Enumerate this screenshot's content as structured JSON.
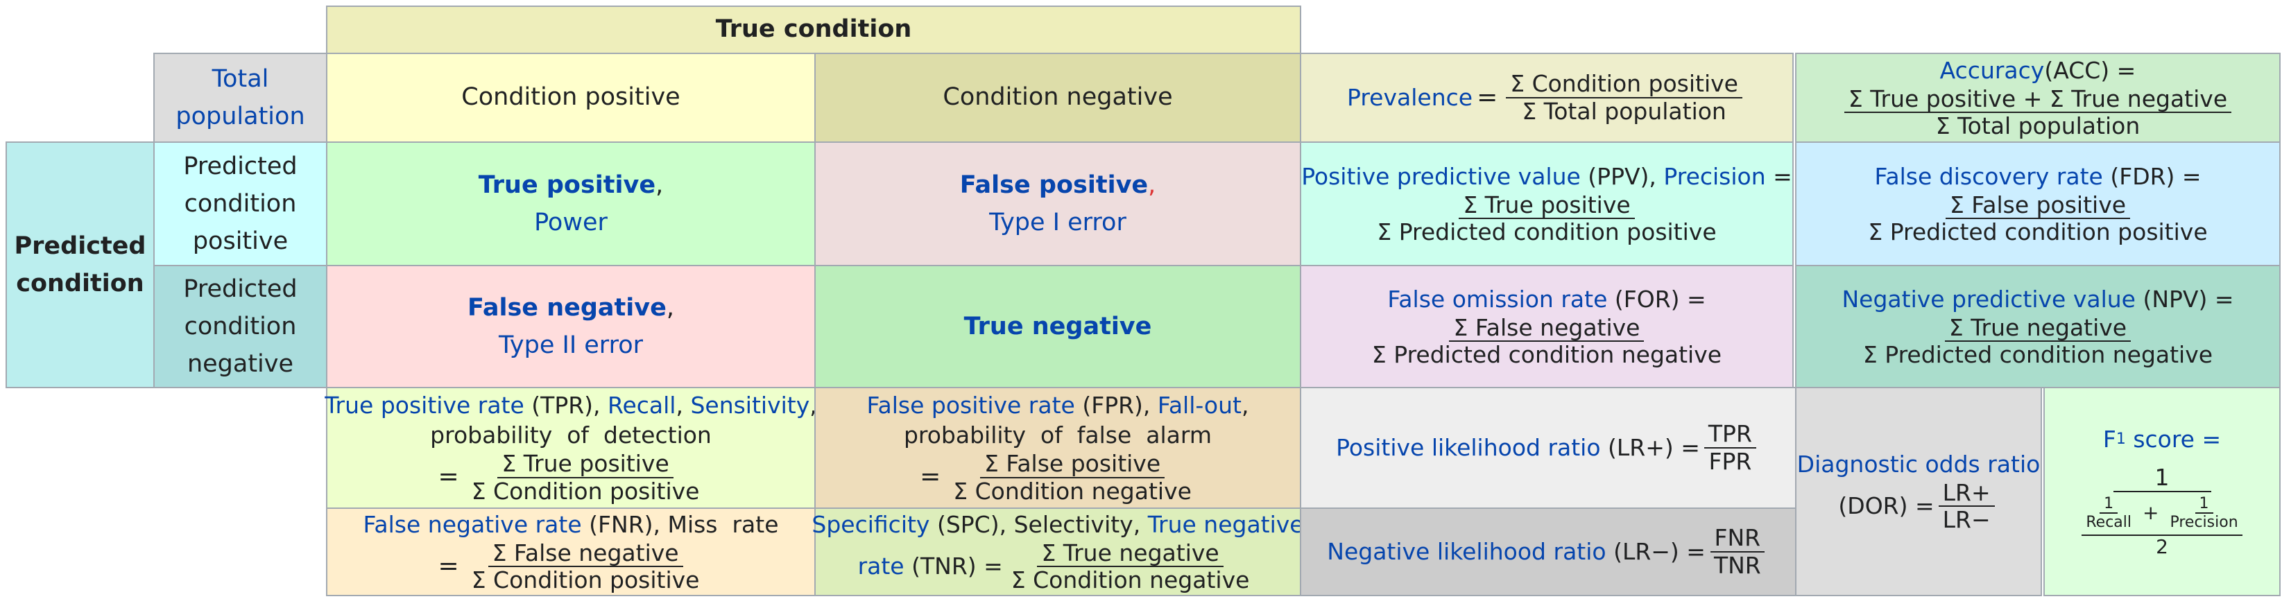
{
  "header": {
    "true_condition": "True condition",
    "total_population": [
      "Total",
      "population"
    ],
    "condition_positive": "Condition positive",
    "condition_negative": "Condition negative",
    "predicted_condition": [
      "Predicted",
      "condition"
    ],
    "predicted_condition_positive": [
      "Predicted",
      "condition",
      "positive"
    ],
    "predicted_condition_negative": [
      "Predicted",
      "condition",
      "negative"
    ]
  },
  "matrix": {
    "true_positive": "True positive",
    "power": "Power",
    "false_positive": "False positive",
    "type1": "Type I error",
    "false_negative": "False negative",
    "type2": "Type II error",
    "true_negative": "True negative",
    "comma": ","
  },
  "prevalence": {
    "label": "Prevalence",
    "eq": "=",
    "num": "Σ  Condition positive",
    "den": "Σ  Total population"
  },
  "accuracy": {
    "label": "Accuracy",
    "abbr": " (ACC) =",
    "num": "Σ  True positive + Σ True negative",
    "den": "Σ  Total population"
  },
  "ppv": {
    "label1": "Positive predictive value",
    "abbr": " (PPV), ",
    "label2": "Precision",
    "eq": " =",
    "num": "Σ True positive",
    "den": "Σ  Predicted  condition  positive"
  },
  "fdr": {
    "label": "False discovery rate",
    "abbr": " (FDR) =",
    "num": "Σ False positive",
    "den": "Σ  Predicted  condition  positive"
  },
  "for": {
    "label": "False omission rate",
    "abbr": " (FOR) =",
    "num": "Σ False negative",
    "den": "Σ  Predicted  condition  negative"
  },
  "npv": {
    "label": "Negative predictive value",
    "abbr": " (NPV) =",
    "num": "Σ True negative",
    "den": "Σ  Predicted  condition  negative"
  },
  "tpr": {
    "label1": "True positive rate",
    "abbr": " (TPR), ",
    "label2": "Recall",
    "sep": ", ",
    "label3": "Sensitivity",
    "tail": ",",
    "line2": "probability  of  detection",
    "eq": "=",
    "num": "Σ True positive",
    "den": "Σ  Condition  positive"
  },
  "fpr": {
    "label1": "False positive rate",
    "abbr": " (FPR), ",
    "label2": "Fall-out",
    "tail": ",",
    "line2": "probability  of  false  alarm",
    "eq": "=",
    "num": "Σ False positive",
    "den": "Σ  Condition  negative"
  },
  "fnr": {
    "label": "False negative rate",
    "abbr": " (FNR), Miss  rate",
    "eq": "=",
    "num": "Σ False negative",
    "den": "Σ  Condition  positive"
  },
  "tnr": {
    "label1": "Specificity",
    "abbr": " (SPC), Selectivity, ",
    "label2": "True negative",
    "label3": "rate",
    "abbr2": " (TNR) =",
    "num": "Σ True negative",
    "den": "Σ  Condition  negative"
  },
  "lrp": {
    "label": "Positive likelihood ratio",
    "abbr": " (LR+) =",
    "num": "TPR",
    "den": "FPR"
  },
  "lrn": {
    "label": "Negative likelihood ratio",
    "abbr": " (LR−) =",
    "num": "FNR",
    "den": "TNR"
  },
  "dor": {
    "label": "Diagnostic odds ratio",
    "abbr": "(DOR) =",
    "num": "LR+",
    "den": "LR−"
  },
  "f1": {
    "label": "F",
    "sub": "1",
    "label2": " score =",
    "num_top": "1",
    "recall": "Recall",
    "precision": "Precision",
    "one": "1",
    "plus": "+",
    "den": "2"
  },
  "colors": {
    "true_condition": "#eeeebb",
    "total_population": "#dddddd",
    "cond_pos": "#ffffcc",
    "cond_neg": "#dddd aa",
    "pred_cond": "#bbeeee",
    "pred_pos": "#ccffff",
    "pred_neg": "#aadddd",
    "tp": "#ccffcc",
    "fp": "#eedddd",
    "fn": "#ffdddd",
    "tn": "#bbeebb",
    "prevalence": "#eeeecc",
    "accuracy": "#cceecc",
    "ppv": "#ccffee",
    "fdr": "#cceeff",
    "for": "#eeddee",
    "npv": "#aaddcc",
    "tpr": "#eeffcc",
    "fpr": "#eeddbb",
    "fnr": "#ffeecc",
    "tnr": "#ddeebb",
    "lrp": "#eeeeee",
    "lrn": "#cccccc",
    "dor": "#dddddd",
    "f1": "#ddffdd"
  }
}
